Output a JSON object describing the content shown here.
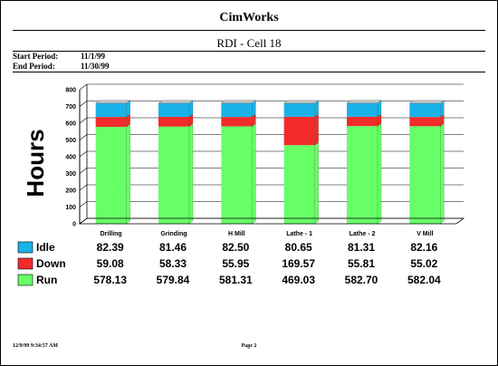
{
  "report": {
    "title": "CimWorks",
    "subtitle": "RDI - Cell 18",
    "start_label": "Start Period:",
    "start_value": "11/1/99",
    "end_label": "End Period:",
    "end_value": "11/30/99",
    "footer_timestamp": "12/9/99 9:34:57 AM",
    "footer_page": "Page 2"
  },
  "chart_data": {
    "type": "bar",
    "stacked": true,
    "ylabel": "Hours",
    "ylim": [
      0,
      800
    ],
    "yticks": [
      0,
      100,
      200,
      300,
      400,
      500,
      600,
      700,
      800
    ],
    "categories": [
      "Drilling",
      "Grinding",
      "H Mill",
      "Lathe - 1",
      "Lathe - 2",
      "V Mill"
    ],
    "series": [
      {
        "name": "Idle",
        "color": "#1ab2e8",
        "values": [
          82.39,
          81.46,
          82.5,
          80.65,
          81.31,
          82.16
        ]
      },
      {
        "name": "Down",
        "color": "#f22b2b",
        "values": [
          59.08,
          58.33,
          55.95,
          169.57,
          55.81,
          55.02
        ]
      },
      {
        "name": "Run",
        "color": "#66ff66",
        "values": [
          578.13,
          579.84,
          581.31,
          469.03,
          582.7,
          582.04
        ]
      }
    ],
    "value_labels": [
      [
        "82.39",
        "81.46",
        "82.50",
        "80.65",
        "81.31",
        "82.16"
      ],
      [
        "59.08",
        "58.33",
        "55.95",
        "169.57",
        "55.81",
        "55.02"
      ],
      [
        "578.13",
        "579.84",
        "581.31",
        "469.03",
        "582.70",
        "582.04"
      ]
    ],
    "grid": true,
    "legend": "bottom-left"
  }
}
